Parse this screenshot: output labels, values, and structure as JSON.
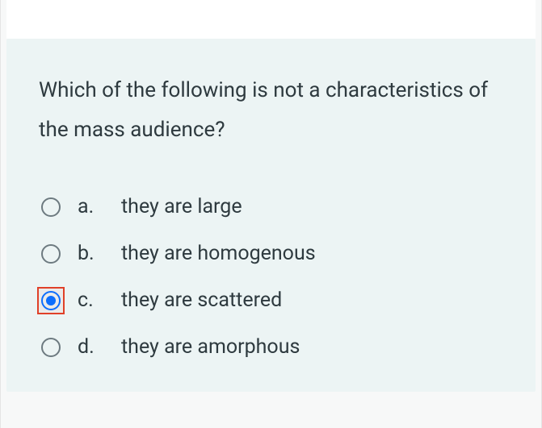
{
  "colors": {
    "card_bg": "#ecf4f4",
    "page_bg": "#f7f8f8",
    "text": "#2e3a3f",
    "radio_border": "#6d7a80",
    "radio_selected": "#0d6efd",
    "highlight_border": "#e04028"
  },
  "question": "Which of the following is not a characteristics of the mass audience?",
  "options": [
    {
      "letter": "a.",
      "text": "they are large",
      "selected": false,
      "highlighted": false
    },
    {
      "letter": "b.",
      "text": "they are homogenous",
      "selected": false,
      "highlighted": false
    },
    {
      "letter": "c.",
      "text": "they are scattered",
      "selected": true,
      "highlighted": true
    },
    {
      "letter": "d.",
      "text": "they are amorphous",
      "selected": false,
      "highlighted": false
    }
  ]
}
